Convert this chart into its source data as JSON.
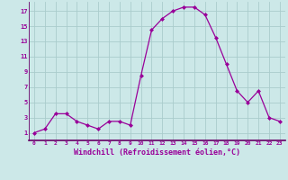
{
  "x": [
    0,
    1,
    2,
    3,
    4,
    5,
    6,
    7,
    8,
    9,
    10,
    11,
    12,
    13,
    14,
    15,
    16,
    17,
    18,
    19,
    20,
    21,
    22,
    23
  ],
  "y": [
    1,
    1.5,
    3.5,
    3.5,
    2.5,
    2,
    1.5,
    2.5,
    2.5,
    2,
    8.5,
    14.5,
    16,
    17,
    17.5,
    17.5,
    16.5,
    13.5,
    10,
    6.5,
    5,
    6.5,
    3,
    2.5
  ],
  "line_color": "#990099",
  "marker": "D",
  "marker_size": 2.0,
  "bg_color": "#cce8e8",
  "grid_color": "#aacccc",
  "xlabel": "Windchill (Refroidissement éolien,°C)",
  "xlabel_color": "#990099",
  "tick_color": "#990099",
  "yticks": [
    1,
    3,
    5,
    7,
    9,
    11,
    13,
    15,
    17
  ],
  "xlim": [
    -0.5,
    23.5
  ],
  "ylim": [
    0.0,
    18.2
  ]
}
